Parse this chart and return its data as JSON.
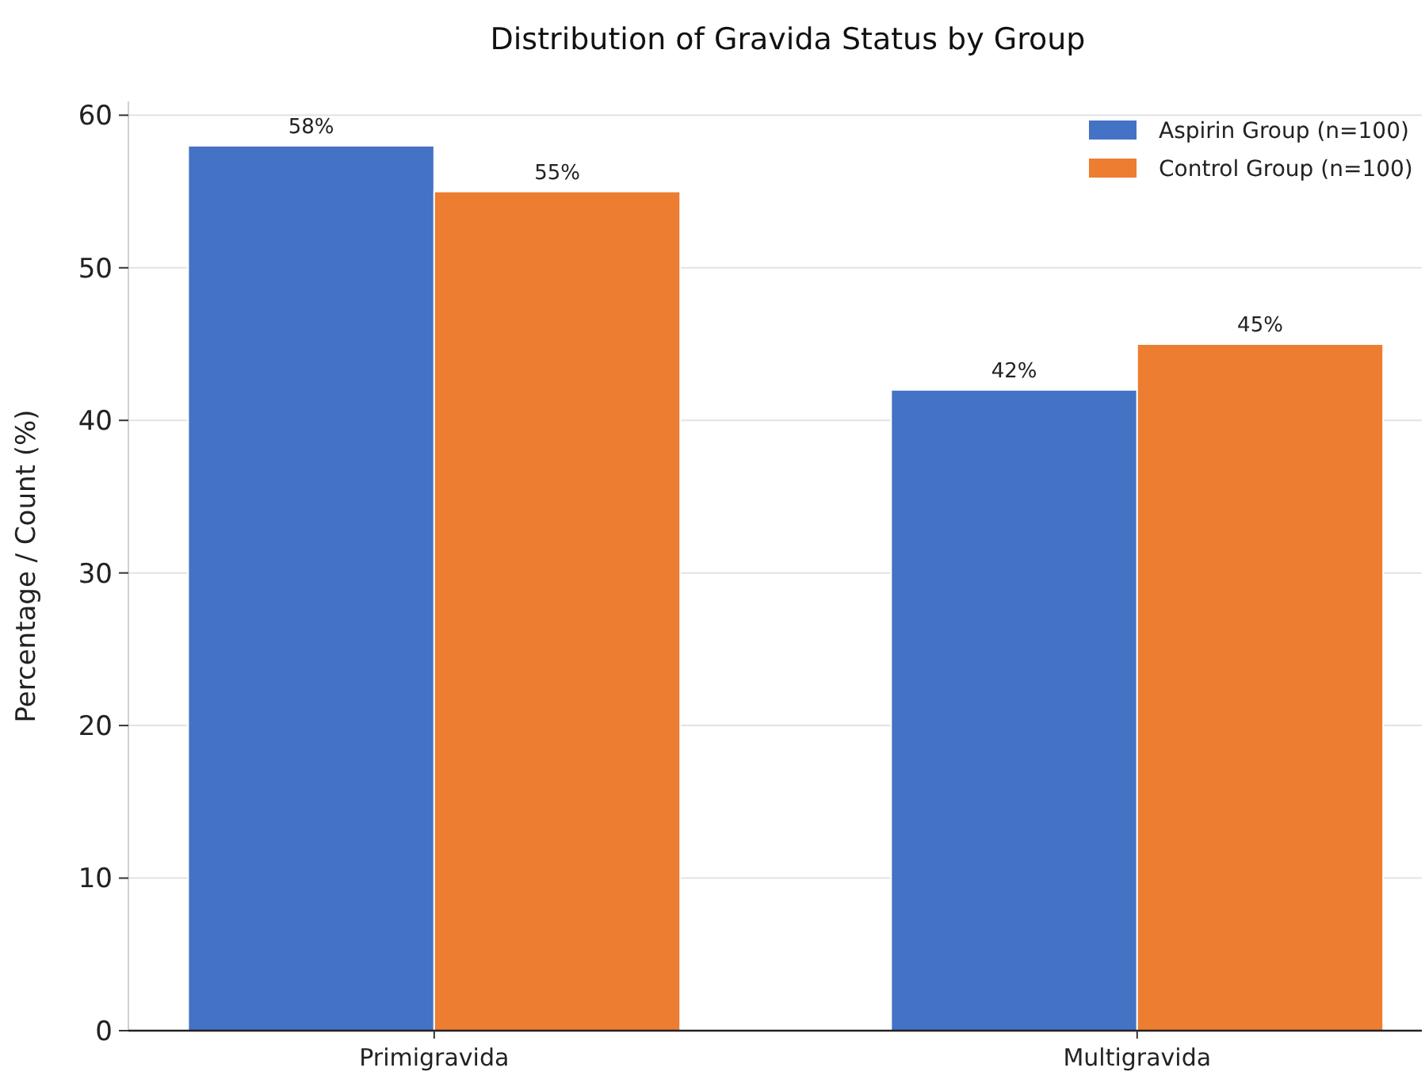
{
  "chart_data": {
    "type": "bar",
    "title": "Distribution of Gravida Status by Group",
    "ylabel": "Percentage / Count (%)",
    "categories": [
      "Primigravida",
      "Multigravida"
    ],
    "series": [
      {
        "name": "Aspirin Group (n=100)",
        "color": "#4472c4",
        "values": [
          58,
          42
        ],
        "value_labels": [
          "58%",
          "42%"
        ]
      },
      {
        "name": "Control Group (n=100)",
        "color": "#ed7d31",
        "values": [
          55,
          45
        ],
        "value_labels": [
          "55%",
          "45%"
        ]
      }
    ],
    "ylim": [
      0,
      60.9
    ],
    "yticks": [
      0,
      10,
      20,
      30,
      40,
      50,
      60
    ],
    "grid": "y",
    "legend": "top right"
  }
}
